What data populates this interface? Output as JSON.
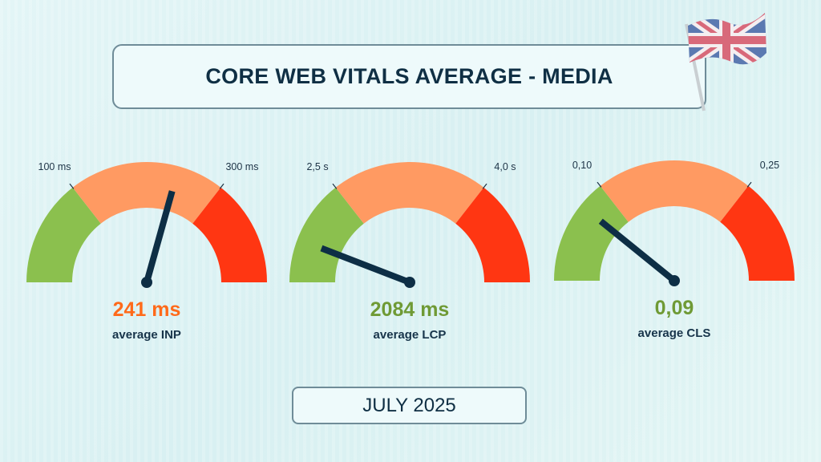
{
  "header": {
    "title": "CORE WEB VITALS AVERAGE - MEDIA",
    "flag_icon": "uk-flag-icon"
  },
  "footer": {
    "period": "JULY 2025"
  },
  "colors": {
    "good": "#8bc04e",
    "needs_improvement": "#ff9a62",
    "poor": "#ff3612",
    "needle": "#0d2e45"
  },
  "chart_data": [
    {
      "type": "gauge",
      "metric": "INP",
      "label": "average INP",
      "value": 241,
      "value_text": "241 ms",
      "value_color": "#ff6a1a",
      "thresholds": [
        100,
        300
      ],
      "threshold_labels": [
        "100 ms",
        "300 ms"
      ],
      "scale_min": 0,
      "scale_max": 500
    },
    {
      "type": "gauge",
      "metric": "LCP",
      "label": "average LCP",
      "value": 2084,
      "value_text": "2084 ms",
      "value_color": "#6f9a35",
      "thresholds": [
        2500,
        4000
      ],
      "threshold_labels": [
        "2,5 s",
        "4,0 s"
      ],
      "scale_min": 1800,
      "scale_max": 5500
    },
    {
      "type": "gauge",
      "metric": "CLS",
      "label": "average CLS",
      "value": 0.09,
      "value_text": "0,09",
      "value_color": "#6f9a35",
      "thresholds": [
        0.1,
        0.25
      ],
      "threshold_labels": [
        "0,10",
        "0,25"
      ],
      "scale_min": 0.06,
      "scale_max": 0.4
    }
  ]
}
